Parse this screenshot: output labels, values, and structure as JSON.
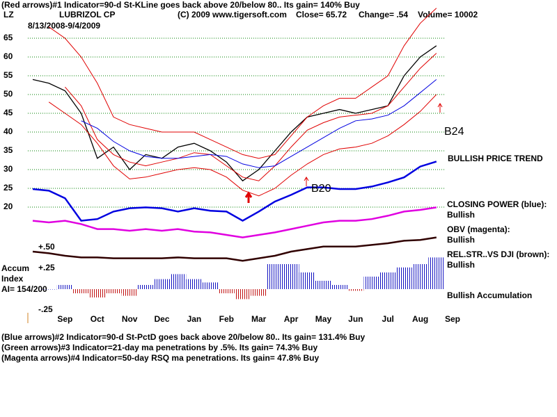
{
  "header": {
    "line1": "(Red arrows)#1 Indicator=90-d St-KLine goes back above 20/below 80.. Its gain= 140% Buy",
    "symbol": "LZ",
    "company": "LUBRIZOL CP",
    "copyright": "(C) 2009 www.tigersoft.com",
    "close": "Close= 65.72",
    "change": "Change= .54",
    "volume": "Volume= 10002",
    "dates": "8/13/2008-9/4/2009"
  },
  "chart_data": [
    {
      "type": "line",
      "categories": [
        null,
        null,
        "Sep",
        null,
        "Oct",
        null,
        "Nov",
        null,
        "Dec",
        null,
        "Jan",
        null,
        "Feb",
        null,
        "Mar",
        null,
        "Apr",
        null,
        "May",
        null,
        "Jun",
        null,
        "Jul",
        null,
        "Aug",
        null,
        "Sep"
      ],
      "ylim": [
        19.07,
        74.26
      ],
      "yticks": [
        20,
        25,
        30,
        35,
        40,
        45,
        50,
        55,
        60,
        65
      ],
      "grid": true,
      "grid_color": "#008000",
      "annotations": [
        "B20",
        "B24",
        "BULLISH PRICE TREND"
      ],
      "series": [
        {
          "color": "#000000",
          "values": [
            54,
            53,
            51,
            45,
            33,
            36,
            30,
            34,
            33,
            36,
            37,
            35,
            32,
            27,
            30,
            35,
            40,
            44,
            45,
            46,
            45,
            46,
            47,
            55,
            60,
            63,
            null
          ]
        },
        {
          "color": "#e00000",
          "values": [
            null,
            68,
            65,
            60,
            53,
            44,
            42,
            41,
            40,
            40,
            40,
            38,
            36,
            34,
            33,
            34,
            39,
            44,
            47,
            49,
            49,
            52,
            55,
            63,
            69,
            73,
            null
          ]
        },
        {
          "color": "#e00000",
          "values": [
            null,
            48,
            45,
            42,
            37,
            31,
            27.5,
            28,
            29,
            30,
            30.5,
            30,
            28,
            24.5,
            23,
            25,
            28.5,
            31.5,
            34,
            35.5,
            36,
            37,
            39,
            42,
            45.5,
            50,
            null
          ]
        },
        {
          "color": "#e00000",
          "values": [
            null,
            null,
            52,
            47,
            38,
            34,
            32,
            31,
            32,
            33,
            34.5,
            34,
            31,
            28,
            27,
            31,
            36,
            40.5,
            42.5,
            44,
            44.5,
            45,
            47,
            52,
            57,
            61,
            null
          ]
        },
        {
          "color": "#0000e0",
          "values": [
            null,
            null,
            null,
            43,
            41,
            37.5,
            35,
            33.5,
            33,
            33,
            33.5,
            34,
            33.5,
            31.5,
            30.5,
            31,
            33.5,
            36,
            38.5,
            41,
            43,
            43.5,
            44.5,
            47,
            50.5,
            54,
            null
          ]
        }
      ]
    },
    {
      "type": "line",
      "ylim": [
        -0.3,
        1.7
      ],
      "status": "Bullish",
      "series": [
        {
          "name": "CLOSING POWER (blue):",
          "color": "#0000e0",
          "values": [
            1.2,
            1.18,
            1.09,
            0.82,
            0.84,
            0.93,
            0.97,
            0.98,
            0.97,
            0.93,
            0.97,
            0.94,
            0.93,
            0.82,
            0.93,
            1.05,
            1.13,
            1.22,
            1.22,
            1.2,
            1.2,
            1.23,
            1.28,
            1.34,
            1.47,
            1.53,
            null
          ]
        },
        {
          "name": "OBV (magenta):",
          "color": "#e000e0",
          "values": [
            0.82,
            0.8,
            0.82,
            0.78,
            0.72,
            0.72,
            0.7,
            0.72,
            0.7,
            0.72,
            0.69,
            0.68,
            0.65,
            0.62,
            0.65,
            0.68,
            0.72,
            0.76,
            0.8,
            0.82,
            0.82,
            0.84,
            0.88,
            0.93,
            0.95,
            0.98,
            null
          ]
        },
        {
          "name": "REL.STR..VS DJI (brown):",
          "color": "#300000",
          "values": [
            0.45,
            0.43,
            0.4,
            0.38,
            0.38,
            0.37,
            0.37,
            0.37,
            0.37,
            0.38,
            0.37,
            0.37,
            0.37,
            0.34,
            0.37,
            0.4,
            0.45,
            0.48,
            0.51,
            0.51,
            0.51,
            0.53,
            0.55,
            0.58,
            0.59,
            0.62,
            null
          ]
        }
      ]
    },
    {
      "type": "bar",
      "title": [
        "Accum",
        "Index",
        "AI= 154/200"
      ],
      "label": "Bullish Accumulation",
      "ylim": [
        -0.3,
        0.6
      ],
      "color": "#1010c0",
      "negative_color": "#c01010",
      "yticks": [
        {
          "value": 0.5,
          "label": "+.50"
        },
        {
          "value": 0.25,
          "label": "+.25"
        },
        {
          "value": -0.25,
          "label": "-.25"
        }
      ],
      "values": [
        null,
        0.0,
        0.05,
        -0.05,
        -0.1,
        -0.05,
        -0.08,
        0.05,
        0.12,
        0.18,
        0.12,
        0.08,
        -0.05,
        -0.12,
        -0.08,
        0.3,
        0.3,
        0.2,
        0.1,
        0.05,
        -0.02,
        0.15,
        0.2,
        0.26,
        0.3,
        0.38,
        null
      ]
    }
  ],
  "footer": [
    "(Blue arrows)#2 Indicator=90-d St-PctD goes back above 20/below 80.. Its gain= 131.4% Buy",
    "(Green arrows)#3 Indicator=21-day ma penetrations by .5%. Its gain= 74.3% Buy",
    "(Magenta arrows)#4 Indicator=50-day RSQ ma penetrations. Its gain= 47.8% Buy"
  ]
}
